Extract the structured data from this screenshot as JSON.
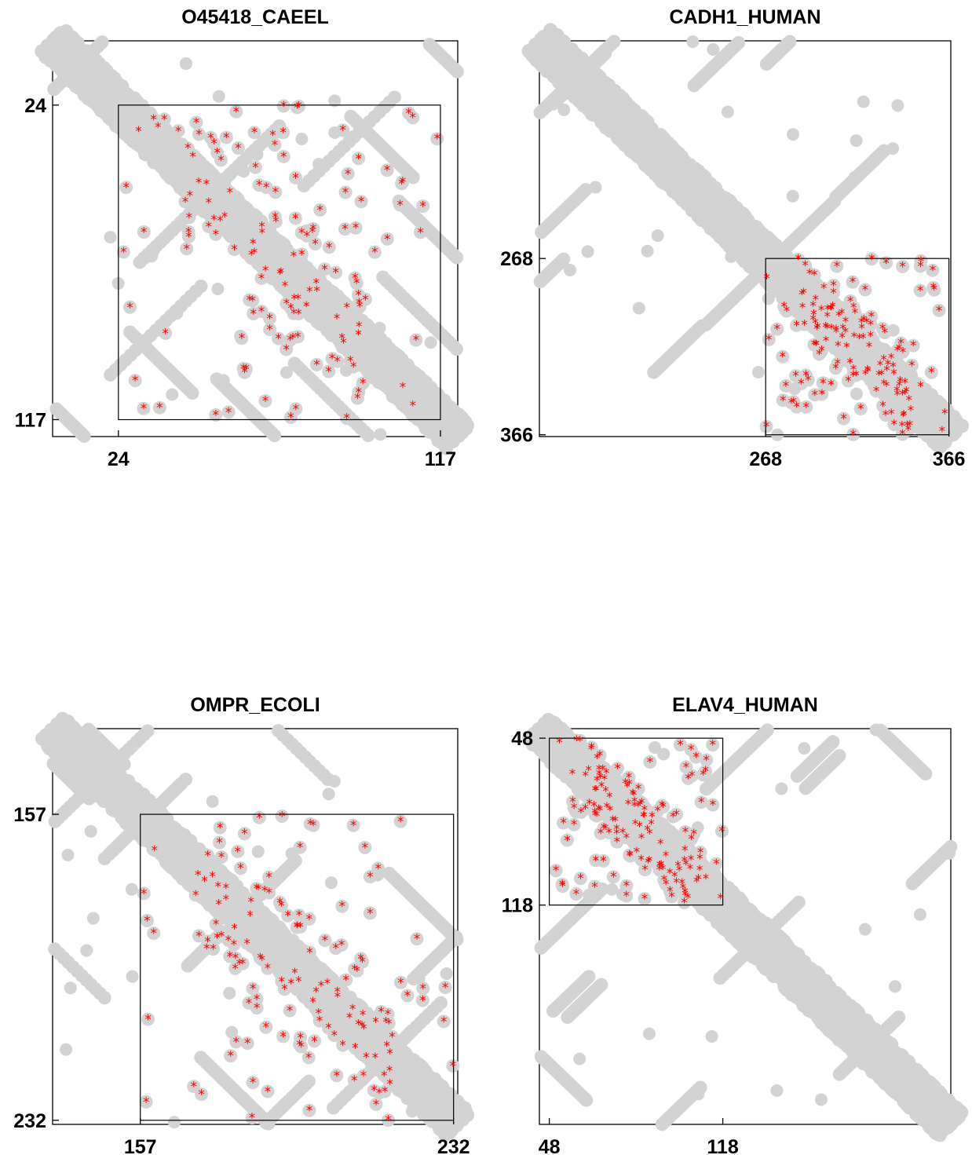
{
  "chart_data": [
    {
      "type": "scatter",
      "title": "O45418_CAEEL",
      "xtick_labels": [
        "24",
        "117"
      ],
      "ytick_labels": [
        "24",
        "117"
      ],
      "ticks": [
        24,
        117
      ],
      "range": [
        5,
        122
      ],
      "yaxis": "reversed",
      "highlight_box": [
        24,
        117
      ],
      "contact_color": "#d3d3d3",
      "marker_color": "#ff0000",
      "grid": false
    },
    {
      "type": "scatter",
      "title": "CADH1_HUMAN",
      "xtick_labels": [
        "268",
        "366"
      ],
      "ytick_labels": [
        "268",
        "366"
      ],
      "ticks": [
        268,
        366
      ],
      "range": [
        147,
        367
      ],
      "yaxis": "reversed",
      "highlight_box": [
        268,
        366
      ],
      "contact_color": "#d3d3d3",
      "marker_color": "#ff0000",
      "grid": false
    },
    {
      "type": "scatter",
      "title": "OMPR_ECOLI",
      "xtick_labels": [
        "157",
        "232"
      ],
      "ytick_labels": [
        "157",
        "232"
      ],
      "ticks": [
        157,
        232
      ],
      "range": [
        136,
        233
      ],
      "yaxis": "reversed",
      "highlight_box": [
        157,
        232
      ],
      "contact_color": "#d3d3d3",
      "marker_color": "#ff0000",
      "grid": false
    },
    {
      "type": "scatter",
      "title": "ELAV4_HUMAN",
      "xtick_labels": [
        "48",
        "118"
      ],
      "ytick_labels": [
        "48",
        "118"
      ],
      "ticks": [
        48,
        118
      ],
      "range": [
        44,
        210
      ],
      "yaxis": "reversed",
      "highlight_box": [
        48,
        118
      ],
      "contact_color": "#d3d3d3",
      "marker_color": "#ff0000",
      "grid": false
    }
  ]
}
